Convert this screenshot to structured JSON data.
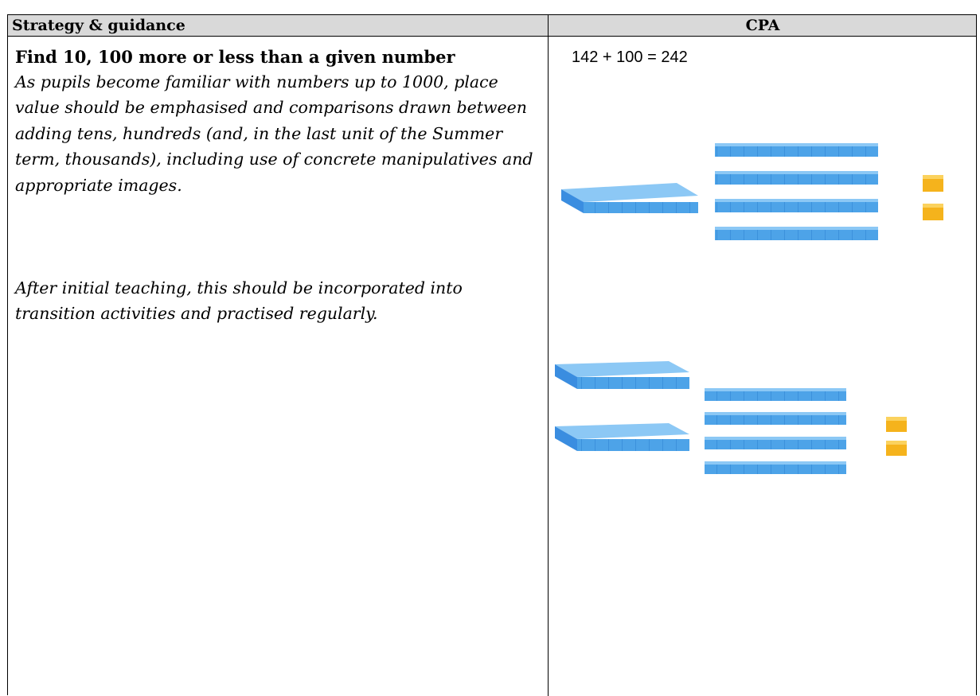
{
  "table": {
    "header": [
      "Strategy & guidance",
      "CPA"
    ],
    "left": {
      "title": "Find 10, 100 more or less than a given number",
      "paragraphs": [
        "As pupils become familiar with numbers up to 1000, place value should be emphasised and comparisons drawn between adding tens, hundreds (and, in the last unit of the Summer term, thousands), including use of concrete manipulatives and appropriate images.",
        "After initial teaching, this should be incorporated into transition activities and practised regularly."
      ]
    },
    "right": {
      "equation": "142 + 100 = 242"
    }
  }
}
